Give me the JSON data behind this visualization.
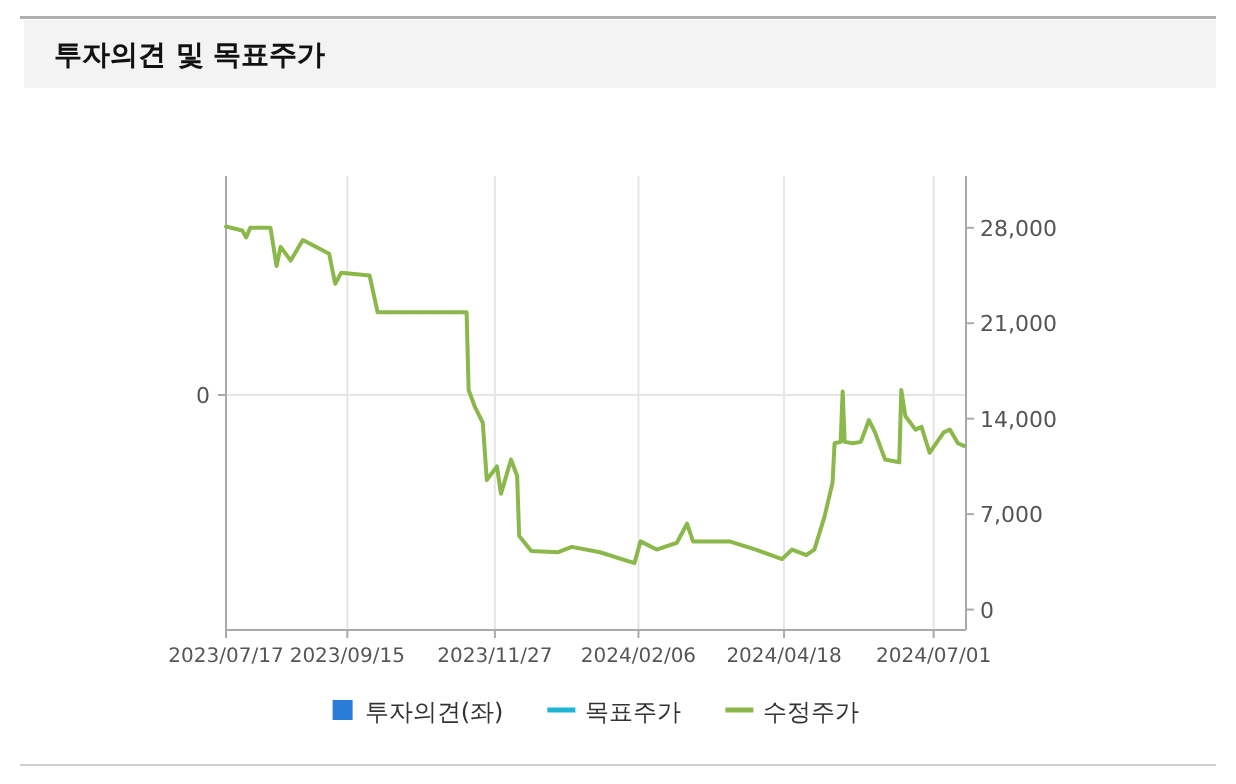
{
  "chart_data": {
    "type": "line",
    "title": "투자의견 및 목표주가",
    "xlim": [
      "2023-07-17",
      "2024-07-17"
    ],
    "xticks": [
      {
        "value": "2023-07-17",
        "label": "2023/07/17"
      },
      {
        "value": "2023-09-15",
        "label": "2023/09/15"
      },
      {
        "value": "2023-11-27",
        "label": "2023/11/27"
      },
      {
        "value": "2024-02-06",
        "label": "2024/02/06"
      },
      {
        "value": "2024-04-18",
        "label": "2024/04/18"
      },
      {
        "value": "2024-07-01",
        "label": "2024/07/01"
      }
    ],
    "annotations": [
      "0"
    ],
    "y2lim": [
      -1500,
      31800
    ],
    "y2ticks": [
      {
        "value": 0,
        "label": "0"
      },
      {
        "value": 7000,
        "label": "7,000"
      },
      {
        "value": 14000,
        "label": "14,000"
      },
      {
        "value": 21000,
        "label": "21,000"
      },
      {
        "value": 28000,
        "label": "28,000"
      }
    ],
    "grid": true,
    "legend": "bottom",
    "series": [
      {
        "name": "투자의견(좌)",
        "type": "bar",
        "color": "#2b7bd8"
      },
      {
        "name": "목표주가",
        "type": "line",
        "axis": "y2",
        "color": "#1fb4d4"
      },
      {
        "name": "수정주가",
        "axis": "y2",
        "color": "#8ab84a",
        "x": [
          "2023-07-17",
          "2023-07-25",
          "2023-07-27",
          "2023-07-29",
          "2023-08-08",
          "2023-08-11",
          "2023-08-13",
          "2023-08-18",
          "2023-08-24",
          "2023-09-06",
          "2023-09-09",
          "2023-09-12",
          "2023-09-26",
          "2023-09-30",
          "2023-10-03",
          "2023-11-13",
          "2023-11-14",
          "2023-11-17",
          "2023-11-21",
          "2023-11-23",
          "2023-11-28",
          "2023-11-30",
          "2023-12-05",
          "2023-12-08",
          "2023-12-09",
          "2023-12-15",
          "2023-12-28",
          "2024-01-04",
          "2024-01-18",
          "2024-02-04",
          "2024-02-07",
          "2024-02-15",
          "2024-02-25",
          "2024-03-01",
          "2024-03-04",
          "2024-03-22",
          "2024-04-04",
          "2024-04-17",
          "2024-04-22",
          "2024-04-29",
          "2024-05-03",
          "2024-05-08",
          "2024-05-12",
          "2024-05-13",
          "2024-05-16",
          "2024-05-17",
          "2024-05-18",
          "2024-05-22",
          "2024-05-26",
          "2024-05-30",
          "2024-06-02",
          "2024-06-07",
          "2024-06-14",
          "2024-06-15",
          "2024-06-17",
          "2024-06-22",
          "2024-06-25",
          "2024-06-29",
          "2024-07-06",
          "2024-07-09",
          "2024-07-13",
          "2024-07-16"
        ],
        "values": [
          28100,
          27800,
          27300,
          28000,
          28000,
          25200,
          26600,
          25600,
          27100,
          26100,
          23900,
          24700,
          24500,
          21800,
          21800,
          21800,
          16100,
          14900,
          13700,
          9500,
          10500,
          8500,
          11000,
          9800,
          5400,
          4300,
          4200,
          4600,
          4200,
          3400,
          5000,
          4400,
          4900,
          6300,
          5000,
          5000,
          4400,
          3700,
          4400,
          4000,
          4400,
          6800,
          9300,
          12200,
          12300,
          16000,
          12300,
          12200,
          12300,
          13900,
          13000,
          11000,
          10800,
          16100,
          14200,
          13200,
          13400,
          11500,
          13000,
          13200,
          12200,
          12000
        ]
      }
    ]
  }
}
